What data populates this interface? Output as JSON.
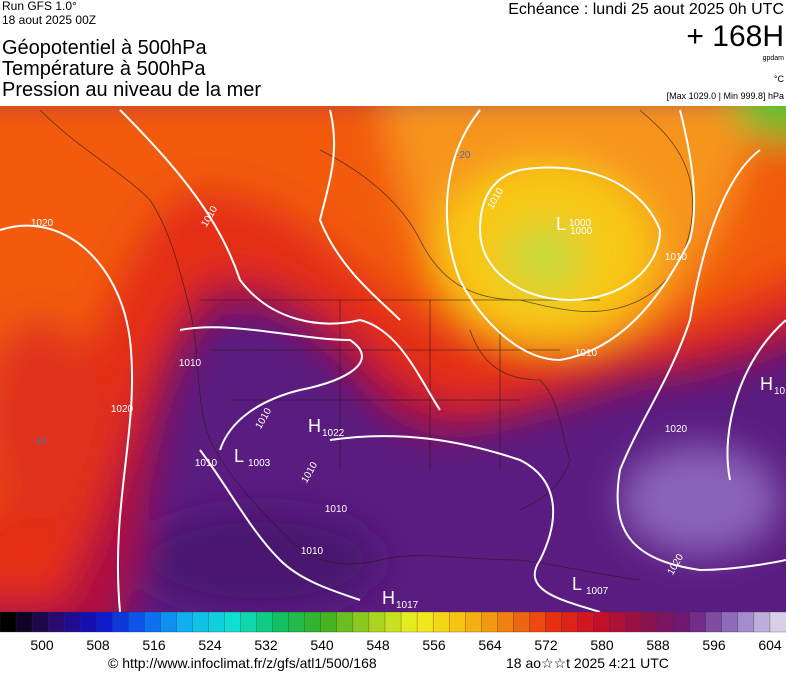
{
  "header": {
    "run": "Run GFS 1.0°",
    "date": "18 aout 2025 00Z",
    "titles": [
      "Géopotentiel à 500hPa",
      "Température à 500hPa",
      "Pression au niveau de la mer"
    ],
    "valid": "Echéance : lundi 25 aout 2025 0h UTC",
    "lead": "+ 168H",
    "unit_geo": "gpdam",
    "unit_temp": "°C",
    "range": "[Max 1029.0 | Min 999.8] hPa"
  },
  "map": {
    "isobar_labels": [
      "1020",
      "1010",
      "1010",
      "1000",
      "1010",
      "1010",
      "1010",
      "1010",
      "1020",
      "1020",
      "1010",
      "1010",
      "1010",
      "1020",
      "1010"
    ],
    "temp_labels": [
      "-20",
      "-10"
    ],
    "centers": [
      {
        "letter": "H",
        "value": "1022"
      },
      {
        "letter": "L",
        "value": "1003"
      },
      {
        "letter": "H",
        "value": "1017"
      },
      {
        "letter": "L",
        "value": "1007"
      },
      {
        "letter": "L",
        "value": "1000"
      },
      {
        "letter": "H",
        "value": "10"
      }
    ]
  },
  "colorbar": {
    "labels": [
      500,
      508,
      516,
      524,
      532,
      540,
      548,
      556,
      564,
      572,
      580,
      588,
      596,
      604
    ]
  },
  "footer": {
    "source": "© http://www.infoclimat.fr/z/gfs/atl1/500/168",
    "timestamp": "18 ao☆☆t 2025  4:21 UTC"
  }
}
